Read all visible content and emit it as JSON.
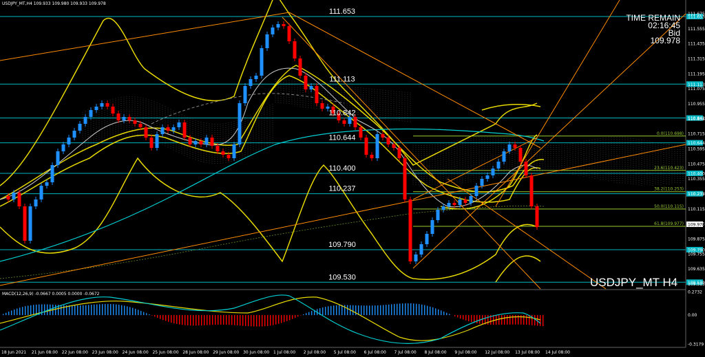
{
  "header": {
    "symbol_label": "USDJPY_MT,H4  109.933 109.980 109.933 109.978"
  },
  "watermark": "USDJPY_MT H4",
  "timer": {
    "title": "TIME REMAIN",
    "time": "02:16:45",
    "bid_label": "Bid",
    "bid_value": "109.978"
  },
  "macd": {
    "label": "MACD(12,26,9) -0.0667 0.0005 0.0000 -0.0672",
    "ticks": [
      {
        "value": "0.2732",
        "frac": 0.03
      },
      {
        "value": "0.00",
        "frac": 0.44
      },
      {
        "value": "-0.3179",
        "frac": 0.96
      }
    ]
  },
  "levels": [
    {
      "label": "111.653",
      "tag": "111.653",
      "price": 111.653
    },
    {
      "label": "111.113",
      "tag": "111.113",
      "price": 111.113
    },
    {
      "label": "110.842",
      "tag": "110.842",
      "price": 110.842
    },
    {
      "label": "110.644",
      "tag": "110.644",
      "price": 110.644
    },
    {
      "label": "110.400",
      "tag": "110.400",
      "price": 110.4
    },
    {
      "label": "110.237",
      "tag": "110.237",
      "price": 110.237
    },
    {
      "label": "109.790",
      "tag": "109.790",
      "price": 109.79
    },
    {
      "label": "109.530",
      "tag": "109.530",
      "price": 109.53
    }
  ],
  "fib": [
    {
      "label": "0.0(110.698)",
      "price": 110.698
    },
    {
      "label": "23.6(110.423)",
      "price": 110.423
    },
    {
      "label": "38.2(110.253)",
      "price": 110.253
    },
    {
      "label": "50.0(110.115)",
      "price": 110.115
    },
    {
      "label": "61.8(109.977)",
      "price": 109.977
    }
  ],
  "price_axis": [
    "111.675",
    "111.555",
    "111.435",
    "111.315",
    "111.195",
    "111.075",
    "110.955",
    "110.835",
    "110.715",
    "110.595",
    "110.475",
    "110.355",
    "110.235",
    "110.115",
    "109.995",
    "109.875",
    "109.755",
    "109.635",
    "109.515"
  ],
  "current_price": "109.978",
  "time_axis": [
    "18 Jun 2021",
    "21 Jun 08:00",
    "22 Jun 08:00",
    "23 Jun 08:00",
    "24 Jun 08:00",
    "25 Jun 08:00",
    "28 Jun 08:00",
    "29 Jun 08:00",
    "30 Jun 08:00",
    "1 Jul 08:00",
    "2 Jul 08:00",
    "5 Jul 08:00",
    "6 Jul 08:00",
    "7 Jul 08:00",
    "8 Jul 08:00",
    "9 Jul 08:00",
    "12 Jul 08:00",
    "13 Jul 08:00",
    "14 Jul 08:00"
  ],
  "colors": {
    "bull": "#1E90FF",
    "bear": "#FF0000",
    "level_line": "#00B7C3",
    "fib_line": "#9ACD32",
    "trend_line": "#FF8C00",
    "band": "#E6D800",
    "ma": "#00CED1"
  }
}
